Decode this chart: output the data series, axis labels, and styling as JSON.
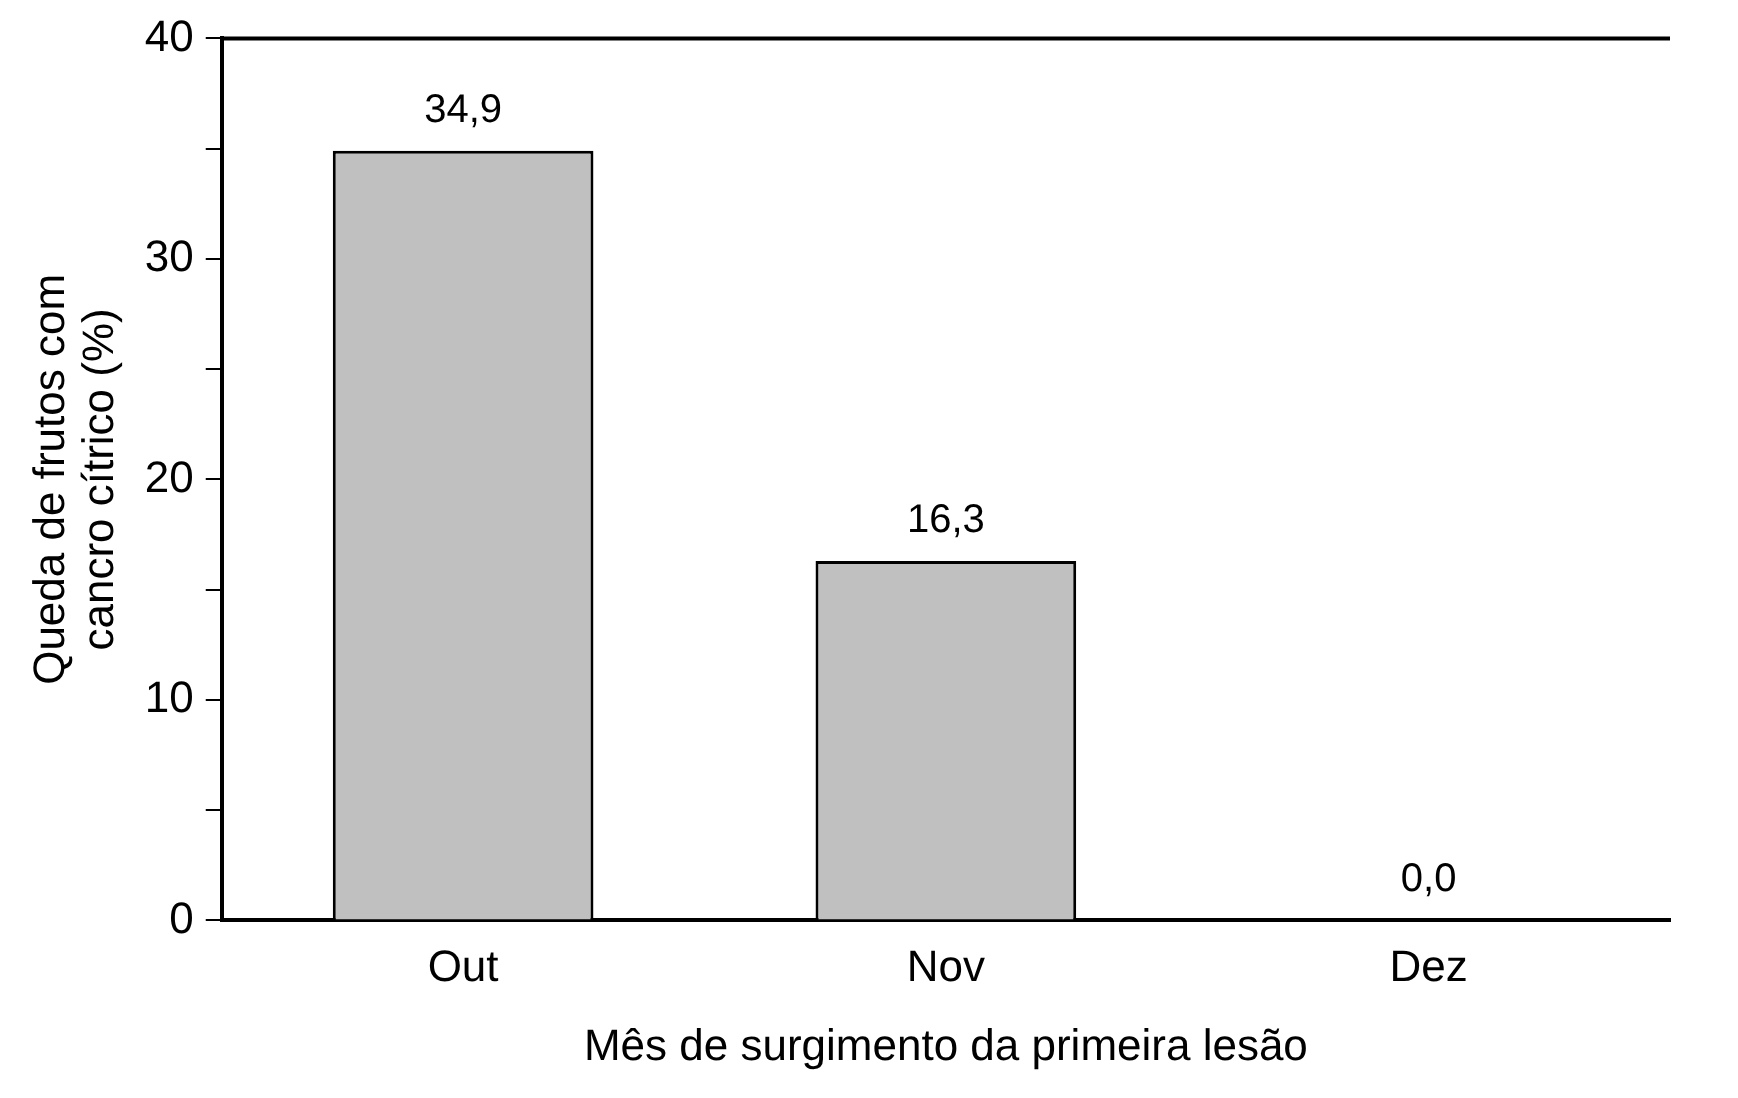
{
  "chart_data": {
    "type": "bar",
    "xlabel": "Mês de surgimento da primeira lesão",
    "ylabel": "Queda de frutos com\ncancro cítrico (%)",
    "categories": [
      "Out",
      "Nov",
      "Dez"
    ],
    "values": [
      34.9,
      16.3,
      0.0
    ],
    "value_labels": [
      "34,9",
      "16,3",
      "0,0"
    ],
    "color": "#c0c0c0",
    "ylim": [
      0,
      40
    ],
    "yticks": [
      0,
      {
        "value": 5,
        "label": null
      },
      10,
      {
        "value": 15,
        "label": null
      },
      20,
      {
        "value": 25,
        "label": null
      },
      30,
      {
        "value": 35,
        "label": null
      },
      40
    ],
    "grid": false
  }
}
